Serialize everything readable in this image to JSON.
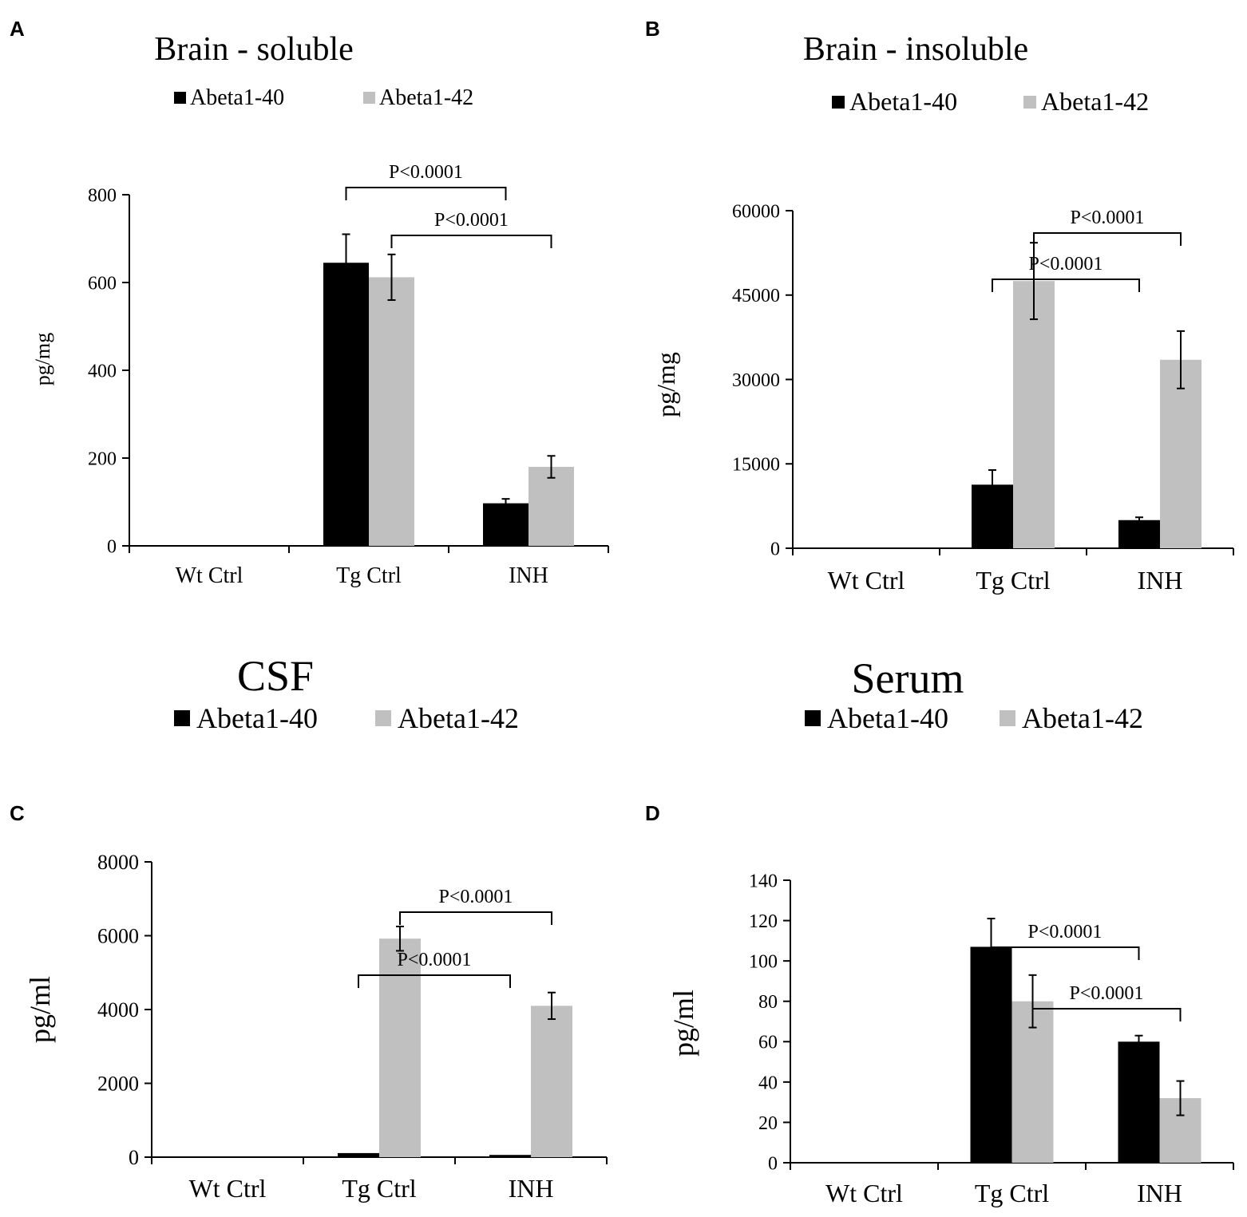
{
  "colors": {
    "abeta40": "#000000",
    "abeta42": "#c0c0c0",
    "axis": "#000000"
  },
  "chart_data": [
    {
      "panel": "A",
      "type": "bar",
      "title": "Brain - soluble",
      "ylabel": "pg/mg",
      "xlabel": "",
      "categories": [
        "Wt Ctrl",
        "Tg Ctrl",
        "INH"
      ],
      "legend": [
        "Abeta1-40",
        "Abeta1-42"
      ],
      "legend_position": "top",
      "ylim": [
        0,
        800
      ],
      "yticks": [
        0,
        200,
        400,
        600,
        800
      ],
      "ytick_labels": [
        "0",
        "200",
        "400",
        "600",
        "800"
      ],
      "series": [
        {
          "name": "Abeta1-40",
          "values": [
            0,
            645,
            97
          ],
          "errors": [
            0,
            65,
            10
          ]
        },
        {
          "name": "Abeta1-42",
          "values": [
            0,
            612,
            180
          ],
          "errors": [
            0,
            52,
            25
          ]
        }
      ],
      "annotations": [
        {
          "label": "P<0.0001",
          "from": [
            1,
            0
          ],
          "to": [
            2,
            0
          ],
          "level": 1
        },
        {
          "label": "P<0.0001",
          "from": [
            1,
            1
          ],
          "to": [
            2,
            1
          ],
          "level": 0
        }
      ]
    },
    {
      "panel": "B",
      "type": "bar",
      "title": "Brain - insoluble",
      "ylabel": "pg/mg",
      "xlabel": "",
      "categories": [
        "Wt Ctrl",
        "Tg Ctrl",
        "INH"
      ],
      "legend": [
        "Abeta1-40",
        "Abeta1-42"
      ],
      "legend_position": "top",
      "ylim": [
        0,
        60000
      ],
      "yticks": [
        0,
        15000,
        30000,
        45000,
        60000
      ],
      "ytick_labels": [
        "0",
        "15000",
        "30000",
        "45000",
        "60000"
      ],
      "series": [
        {
          "name": "Abeta1-40",
          "values": [
            0,
            11300,
            5000
          ],
          "errors": [
            0,
            2600,
            500
          ]
        },
        {
          "name": "Abeta1-42",
          "values": [
            0,
            47500,
            33500
          ],
          "errors": [
            0,
            6800,
            5100
          ]
        }
      ],
      "annotations": [
        {
          "label": "P<0.0001",
          "from": [
            1,
            1
          ],
          "to": [
            2,
            1
          ],
          "level": 1
        },
        {
          "label": "P<0.0001",
          "from": [
            1,
            0
          ],
          "to": [
            2,
            0
          ],
          "level": 0
        }
      ]
    },
    {
      "panel": "C",
      "type": "bar",
      "title": "CSF",
      "ylabel": "pg/ml",
      "xlabel": "",
      "categories": [
        "Wt Ctrl",
        "Tg Ctrl",
        "INH"
      ],
      "legend": [
        "Abeta1-40",
        "Abeta1-42"
      ],
      "legend_position": "top",
      "ylim": [
        0,
        8000
      ],
      "yticks": [
        0,
        2000,
        4000,
        6000,
        8000
      ],
      "ytick_labels": [
        "0",
        "2000",
        "4000",
        "6000",
        "8000"
      ],
      "series": [
        {
          "name": "Abeta1-40",
          "values": [
            0,
            110,
            60
          ],
          "errors": [
            0,
            0,
            0
          ]
        },
        {
          "name": "Abeta1-42",
          "values": [
            0,
            5920,
            4100
          ],
          "errors": [
            0,
            330,
            360
          ]
        }
      ],
      "annotations": [
        {
          "label": "P<0.0001",
          "from": [
            1,
            1
          ],
          "to": [
            2,
            1
          ],
          "level": 1
        },
        {
          "label": "P<0.0001",
          "from": [
            1,
            0
          ],
          "to": [
            2,
            0
          ],
          "level": 0
        }
      ]
    },
    {
      "panel": "D",
      "type": "bar",
      "title": "Serum",
      "ylabel": "pg/ml",
      "xlabel": "",
      "categories": [
        "Wt Ctrl",
        "Tg Ctrl",
        "INH"
      ],
      "legend": [
        "Abeta1-40",
        "Abeta1-42"
      ],
      "legend_position": "top",
      "ylim": [
        0,
        140
      ],
      "yticks": [
        0,
        20,
        40,
        60,
        80,
        100,
        120,
        140
      ],
      "ytick_labels": [
        "0",
        "20",
        "40",
        "60",
        "80",
        "100",
        "120",
        "140"
      ],
      "series": [
        {
          "name": "Abeta1-40",
          "values": [
            0,
            107,
            60
          ],
          "errors": [
            0,
            14,
            3
          ]
        },
        {
          "name": "Abeta1-42",
          "values": [
            0,
            80,
            32
          ],
          "errors": [
            0,
            13,
            8.5
          ]
        }
      ],
      "annotations": [
        {
          "label": "P<0.0001",
          "from": [
            1,
            0
          ],
          "to": [
            2,
            0
          ],
          "level": 1
        },
        {
          "label": "P<0.0001",
          "from": [
            1,
            1
          ],
          "to": [
            2,
            1
          ],
          "level": 0
        }
      ]
    }
  ]
}
